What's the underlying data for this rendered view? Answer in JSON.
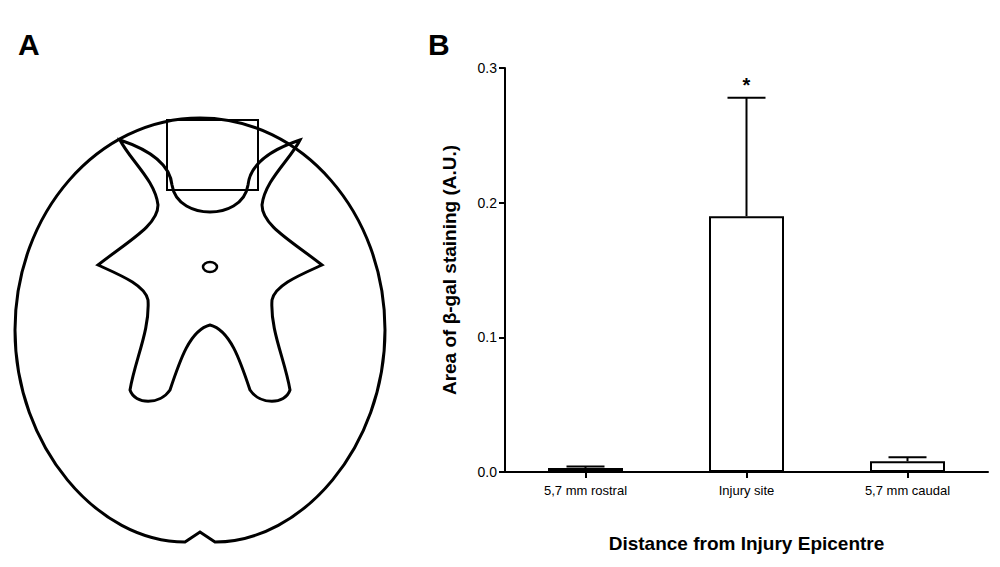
{
  "panel_labels": [
    "A",
    "B"
  ],
  "chart_data": {
    "type": "bar",
    "categories": [
      "5,7 mm rostral",
      "Injury site",
      "5,7 mm caudal"
    ],
    "values": [
      0.003,
      0.19,
      0.008
    ],
    "errors": [
      0.001,
      0.088,
      0.003
    ],
    "color": "#ffffff",
    "x_label": "Distance from Injury Epicentre",
    "y_label": "Area of β-gal staining (A.U.)",
    "ylim": [
      0,
      0.3
    ],
    "yticks": [
      {
        "value": 0,
        "label": "0.0"
      },
      0.1,
      0.2,
      0.3
    ],
    "grid": false,
    "annotations": [
      {
        "category": "Injury site",
        "text": "*"
      }
    ]
  }
}
